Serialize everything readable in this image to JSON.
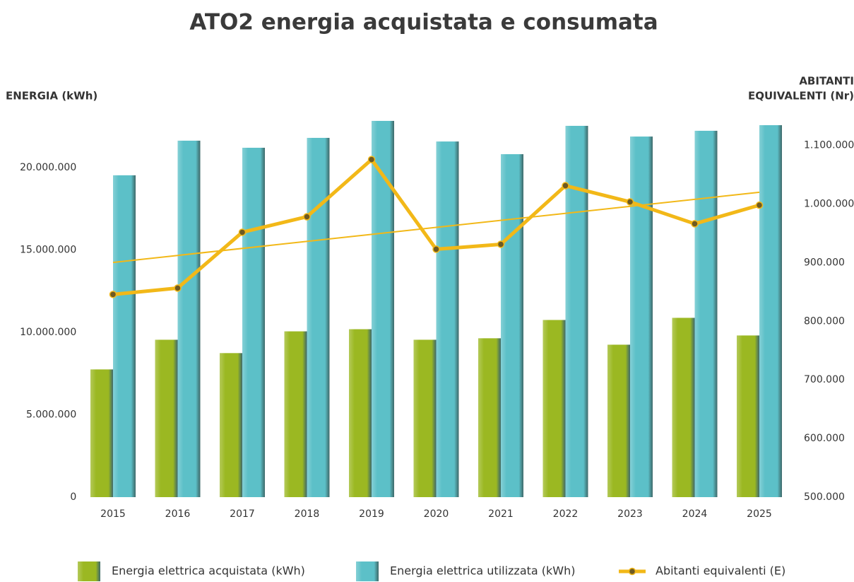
{
  "chart_data": {
    "type": "bar+line",
    "title": "ATO2 energia acquistata e consumata",
    "y_label": "ENERGIA (kWh)",
    "y2_label": [
      "ABITANTI",
      "EQUIVALENTI (Nr)"
    ],
    "categories": [
      "2015",
      "2016",
      "2017",
      "2018",
      "2019",
      "2020",
      "2021",
      "2022",
      "2023",
      "2024",
      "2025"
    ],
    "series": [
      {
        "name": "Energia elettrica acquistata (kWh)",
        "color": "#9bb822",
        "type": "bar",
        "values": [
          7750000,
          9550000,
          8740000,
          10060000,
          10190000,
          9550000,
          9640000,
          10750000,
          9250000,
          10880000,
          9810000
        ]
      },
      {
        "name": "Energia elettrica utilizzata (kWh)",
        "color": "#5cc0c8",
        "type": "bar",
        "values": [
          19530000,
          21630000,
          21200000,
          21800000,
          22830000,
          21580000,
          20810000,
          22530000,
          21880000,
          22230000,
          22570000
        ]
      },
      {
        "name": "Abitanti equivalenti (E)",
        "color": "#f2b818",
        "type": "line",
        "axis": "y2",
        "trendline": true,
        "values": [
          845800,
          856600,
          951800,
          978300,
          1075900,
          922900,
          931300,
          1031300,
          1003600,
          966300,
          998000
        ]
      }
    ],
    "ylim": [
      0,
      23300000
    ],
    "yticks": [
      0,
      {
        "value": 5000000,
        "label": "5.000.000"
      },
      {
        "value": 10000000,
        "label": "10.000.000"
      },
      {
        "value": 15000000,
        "label": "15.000.000"
      },
      {
        "value": 20000000,
        "label": "20.000.000"
      }
    ],
    "y2lim": [
      500000,
      1155000
    ],
    "y2ticks": [
      {
        "value": 500000,
        "label": "500.000"
      },
      {
        "value": 600000,
        "label": "600.000"
      },
      {
        "value": 700000,
        "label": "700.000"
      },
      {
        "value": 800000,
        "label": "800.000"
      },
      {
        "value": 900000,
        "label": "900.000"
      },
      {
        "value": 1000000,
        "label": "1.000.000"
      },
      {
        "value": 1100000,
        "label": "1.100.000"
      }
    ],
    "grid": false,
    "legend": "bottom"
  }
}
